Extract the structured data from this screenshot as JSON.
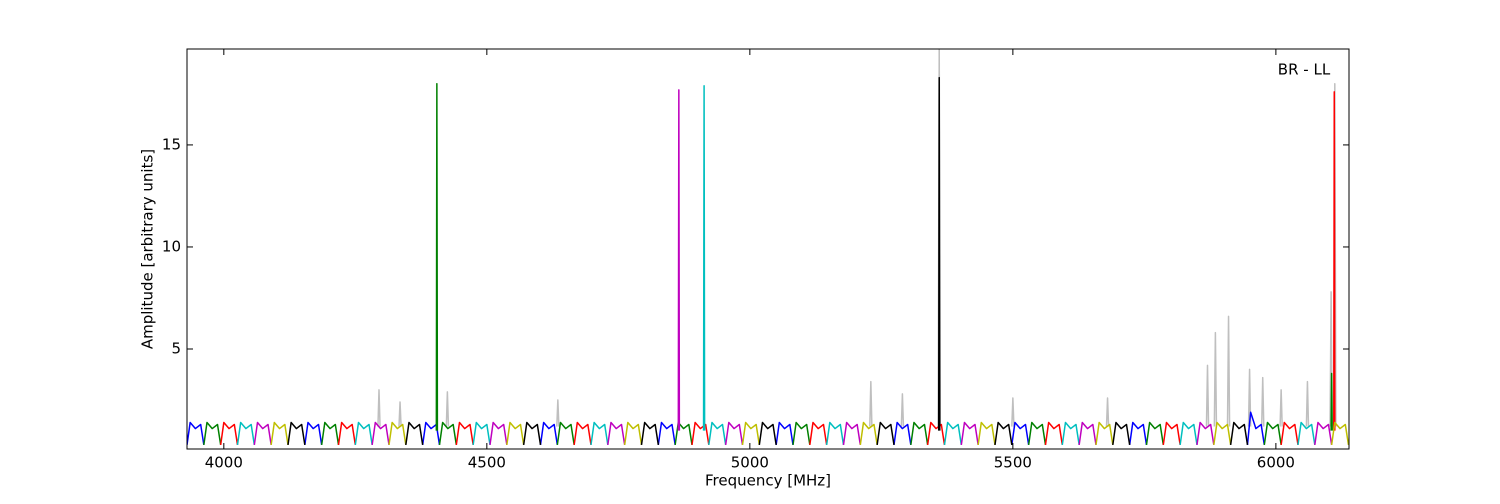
{
  "chart_data": {
    "type": "line",
    "annotation": "BR - LL",
    "xlabel": "Frequency [MHz]",
    "ylabel": "Amplitude [arbitrary units]",
    "xlim": [
      3930,
      6139
    ],
    "ylim": [
      0.1,
      19.7
    ],
    "xticks": [
      4000,
      4500,
      5000,
      5500,
      6000
    ],
    "yticks": [
      5,
      10,
      15
    ],
    "series": [
      {
        "color": "#bfbfbf",
        "x": [
          4293,
          4295,
          4297,
          null,
          4333,
          4335,
          4337,
          null,
          4423,
          4425,
          4427,
          null,
          4633,
          4635,
          4637,
          null,
          5228,
          5230,
          5232,
          null,
          5288,
          5290,
          5292,
          null,
          5358,
          5360,
          5362,
          null,
          5498,
          5500,
          5502,
          null,
          5678,
          5680,
          5682,
          null,
          5868,
          5870,
          5872,
          null,
          5883,
          5885,
          5887,
          null,
          5908,
          5910,
          5912,
          null,
          5948,
          5950,
          5952,
          null,
          5973,
          5975,
          5977,
          null,
          6008,
          6010,
          6012,
          null,
          6058,
          6060,
          6062,
          null,
          6103,
          6105,
          6107,
          null,
          6110,
          6112,
          6114
        ],
        "values": [
          1.2,
          3.0,
          1.2,
          null,
          1.2,
          2.4,
          1.2,
          null,
          1.2,
          2.9,
          1.2,
          null,
          1.2,
          2.5,
          1.2,
          null,
          1.2,
          3.4,
          1.2,
          null,
          1.2,
          2.8,
          1.2,
          null,
          1.2,
          19.7,
          1.2,
          null,
          1.2,
          2.6,
          1.2,
          null,
          1.2,
          2.6,
          1.2,
          null,
          1.2,
          4.2,
          1.2,
          null,
          1.2,
          5.8,
          1.2,
          null,
          1.2,
          6.6,
          1.2,
          null,
          1.2,
          4.0,
          1.2,
          null,
          1.2,
          3.6,
          1.2,
          null,
          1.2,
          3.0,
          1.2,
          null,
          1.2,
          3.4,
          1.2,
          null,
          1.2,
          7.8,
          1.2,
          null,
          1.2,
          18.0,
          1.2
        ]
      },
      {
        "color": "#0000ff",
        "x": [
          3930,
          3936,
          3946,
          3956,
          3962,
          null,
          4154,
          4160,
          4170,
          4180,
          4186,
          null,
          4378,
          4384,
          4394,
          4404,
          4410,
          null,
          4602,
          4608,
          4618,
          4628,
          4634,
          null,
          4826,
          4832,
          4842,
          4852,
          4858,
          null,
          5050,
          5056,
          5066,
          5076,
          5082,
          null,
          5274,
          5280,
          5290,
          5300,
          5306,
          null,
          5498,
          5504,
          5514,
          5524,
          5530,
          null,
          5722,
          5728,
          5738,
          5748,
          5754,
          null,
          5946,
          5952,
          5962,
          5972,
          5978
        ],
        "values": [
          0.3,
          1.4,
          1.1,
          1.3,
          0.3,
          null,
          0.3,
          1.4,
          1.1,
          1.3,
          0.3,
          null,
          0.3,
          1.4,
          1.1,
          1.3,
          0.3,
          null,
          0.3,
          1.4,
          1.1,
          1.3,
          0.3,
          null,
          0.3,
          1.4,
          1.1,
          1.3,
          0.3,
          null,
          0.3,
          1.4,
          1.1,
          1.3,
          0.3,
          null,
          0.3,
          1.4,
          1.1,
          1.3,
          0.3,
          null,
          0.3,
          1.4,
          1.1,
          1.3,
          0.3,
          null,
          0.3,
          1.4,
          1.1,
          1.3,
          0.3,
          null,
          0.3,
          1.9,
          1.1,
          1.3,
          0.3
        ]
      },
      {
        "color": "#008000",
        "x": [
          3962,
          3968,
          3978,
          3988,
          3994,
          null,
          4186,
          4192,
          4202,
          4212,
          4218,
          null,
          4410,
          4416,
          4426,
          4436,
          4442,
          null,
          4634,
          4640,
          4650,
          4660,
          4666,
          null,
          4858,
          4864,
          4874,
          4884,
          4890,
          null,
          5082,
          5088,
          5098,
          5108,
          5114,
          null,
          5306,
          5312,
          5322,
          5332,
          5338,
          null,
          5530,
          5536,
          5546,
          5556,
          5562,
          null,
          5754,
          5760,
          5770,
          5780,
          5786,
          null,
          5978,
          5984,
          5994,
          6004,
          6010,
          null,
          4404,
          4405,
          4406,
          null,
          6105,
          6106,
          6107
        ],
        "values": [
          0.3,
          1.4,
          1.1,
          1.3,
          0.3,
          null,
          0.3,
          1.4,
          1.1,
          1.3,
          0.3,
          null,
          0.3,
          1.4,
          1.1,
          1.3,
          0.3,
          null,
          0.3,
          1.4,
          1.1,
          1.3,
          0.3,
          null,
          0.3,
          1.4,
          1.1,
          1.3,
          0.3,
          null,
          0.3,
          1.4,
          1.1,
          1.3,
          0.3,
          null,
          0.3,
          1.4,
          1.1,
          1.3,
          0.3,
          null,
          0.3,
          1.4,
          1.1,
          1.3,
          0.3,
          null,
          0.3,
          1.4,
          1.1,
          1.3,
          0.3,
          null,
          0.3,
          1.4,
          1.1,
          1.3,
          0.3,
          null,
          1.0,
          18.0,
          1.0,
          null,
          1.0,
          3.8,
          1.0
        ]
      },
      {
        "color": "#ff0000",
        "x": [
          3994,
          4000,
          4010,
          4020,
          4026,
          null,
          4218,
          4224,
          4234,
          4244,
          4250,
          null,
          4442,
          4448,
          4458,
          4468,
          4474,
          null,
          4666,
          4672,
          4682,
          4692,
          4698,
          null,
          4890,
          4896,
          4906,
          4916,
          4922,
          null,
          5114,
          5120,
          5130,
          5140,
          5146,
          null,
          5338,
          5344,
          5354,
          5364,
          5370,
          null,
          5562,
          5568,
          5578,
          5588,
          5594,
          null,
          5786,
          5792,
          5802,
          5812,
          5818,
          null,
          6010,
          6016,
          6026,
          6036,
          6042,
          null,
          6110,
          6111,
          6112
        ],
        "values": [
          0.3,
          1.4,
          1.1,
          1.3,
          0.3,
          null,
          0.3,
          1.4,
          1.1,
          1.3,
          0.3,
          null,
          0.3,
          1.4,
          1.1,
          1.3,
          0.3,
          null,
          0.3,
          1.4,
          1.1,
          1.3,
          0.3,
          null,
          0.3,
          1.4,
          1.1,
          1.3,
          0.3,
          null,
          0.3,
          1.4,
          1.1,
          1.3,
          0.3,
          null,
          0.3,
          1.4,
          1.1,
          1.3,
          0.3,
          null,
          0.3,
          1.4,
          1.1,
          1.3,
          0.3,
          null,
          0.3,
          1.4,
          1.1,
          1.3,
          0.3,
          null,
          0.3,
          1.4,
          1.1,
          1.3,
          0.3,
          null,
          1.0,
          17.6,
          1.0
        ]
      },
      {
        "color": "#00bfbf",
        "x": [
          4026,
          4032,
          4042,
          4052,
          4058,
          null,
          4250,
          4256,
          4266,
          4276,
          4282,
          null,
          4474,
          4480,
          4490,
          4500,
          4506,
          null,
          4698,
          4704,
          4714,
          4724,
          4730,
          null,
          4922,
          4928,
          4938,
          4948,
          4954,
          null,
          5146,
          5152,
          5162,
          5172,
          5178,
          null,
          5370,
          5376,
          5386,
          5396,
          5402,
          null,
          5594,
          5600,
          5610,
          5620,
          5626,
          null,
          5818,
          5824,
          5834,
          5844,
          5850,
          null,
          6042,
          6048,
          6058,
          6068,
          6074,
          null,
          4912,
          4913,
          4914
        ],
        "values": [
          0.3,
          1.4,
          1.1,
          1.3,
          0.3,
          null,
          0.3,
          1.4,
          1.1,
          1.3,
          0.3,
          null,
          0.3,
          1.4,
          1.1,
          1.3,
          0.3,
          null,
          0.3,
          1.4,
          1.1,
          1.3,
          0.3,
          null,
          0.3,
          1.4,
          1.1,
          1.3,
          0.3,
          null,
          0.3,
          1.4,
          1.1,
          1.3,
          0.3,
          null,
          0.3,
          1.4,
          1.1,
          1.3,
          0.3,
          null,
          0.3,
          1.4,
          1.1,
          1.3,
          0.3,
          null,
          0.3,
          1.4,
          1.1,
          1.3,
          0.3,
          null,
          0.3,
          1.4,
          1.1,
          1.3,
          0.3,
          null,
          1.0,
          17.9,
          1.0
        ]
      },
      {
        "color": "#bf00bf",
        "x": [
          4058,
          4064,
          4074,
          4084,
          4090,
          null,
          4282,
          4288,
          4298,
          4308,
          4314,
          null,
          4506,
          4512,
          4522,
          4532,
          4538,
          null,
          4730,
          4736,
          4746,
          4756,
          4762,
          null,
          4954,
          4960,
          4970,
          4980,
          4986,
          null,
          5178,
          5184,
          5194,
          5204,
          5210,
          null,
          5402,
          5408,
          5418,
          5428,
          5434,
          null,
          5626,
          5632,
          5642,
          5652,
          5658,
          null,
          5850,
          5856,
          5866,
          5876,
          5882,
          null,
          6074,
          6080,
          6090,
          6100,
          6106,
          null,
          4864,
          4865,
          4866
        ],
        "values": [
          0.3,
          1.4,
          1.1,
          1.3,
          0.3,
          null,
          0.3,
          1.4,
          1.1,
          1.3,
          0.3,
          null,
          0.3,
          1.4,
          1.1,
          1.3,
          0.3,
          null,
          0.3,
          1.4,
          1.1,
          1.3,
          0.3,
          null,
          0.3,
          1.4,
          1.1,
          1.3,
          0.3,
          null,
          0.3,
          1.4,
          1.1,
          1.3,
          0.3,
          null,
          0.3,
          1.4,
          1.1,
          1.3,
          0.3,
          null,
          0.3,
          1.4,
          1.1,
          1.3,
          0.3,
          null,
          0.3,
          1.4,
          1.1,
          1.3,
          0.3,
          null,
          0.3,
          1.4,
          1.1,
          1.3,
          0.3,
          null,
          1.0,
          17.7,
          1.0
        ]
      },
      {
        "color": "#bfbf00",
        "x": [
          4090,
          4096,
          4106,
          4116,
          4122,
          null,
          4314,
          4320,
          4330,
          4340,
          4346,
          null,
          4538,
          4544,
          4554,
          4564,
          4570,
          null,
          4762,
          4768,
          4778,
          4788,
          4794,
          null,
          4986,
          4992,
          5002,
          5012,
          5018,
          null,
          5210,
          5216,
          5226,
          5236,
          5242,
          null,
          5434,
          5440,
          5450,
          5460,
          5466,
          null,
          5658,
          5664,
          5674,
          5684,
          5690,
          null,
          5882,
          5888,
          5898,
          5908,
          5914,
          null,
          6106,
          6112,
          6122,
          6132,
          6138
        ],
        "values": [
          0.3,
          1.4,
          1.1,
          1.3,
          0.3,
          null,
          0.3,
          1.4,
          1.1,
          1.3,
          0.3,
          null,
          0.3,
          1.4,
          1.1,
          1.3,
          0.3,
          null,
          0.3,
          1.4,
          1.1,
          1.3,
          0.3,
          null,
          0.3,
          1.4,
          1.1,
          1.3,
          0.3,
          null,
          0.3,
          1.4,
          1.1,
          1.3,
          0.3,
          null,
          0.3,
          1.4,
          1.1,
          1.3,
          0.3,
          null,
          0.3,
          1.4,
          1.1,
          1.3,
          0.3,
          null,
          0.3,
          1.4,
          1.1,
          1.3,
          0.3,
          null,
          0.3,
          1.4,
          1.1,
          1.3,
          0.3
        ]
      },
      {
        "color": "#000000",
        "x": [
          4122,
          4128,
          4138,
          4148,
          4154,
          null,
          4346,
          4352,
          4362,
          4372,
          4378,
          null,
          4570,
          4576,
          4586,
          4596,
          4602,
          null,
          4794,
          4800,
          4810,
          4820,
          4826,
          null,
          5018,
          5024,
          5034,
          5044,
          5050,
          null,
          5242,
          5248,
          5258,
          5268,
          5274,
          null,
          5466,
          5472,
          5482,
          5492,
          5498,
          null,
          5690,
          5696,
          5706,
          5716,
          5722,
          null,
          5914,
          5920,
          5930,
          5940,
          5946,
          null,
          5359,
          5360,
          5361
        ],
        "values": [
          0.3,
          1.4,
          1.1,
          1.3,
          0.3,
          null,
          0.3,
          1.4,
          1.1,
          1.3,
          0.3,
          null,
          0.3,
          1.4,
          1.1,
          1.3,
          0.3,
          null,
          0.3,
          1.4,
          1.1,
          1.3,
          0.3,
          null,
          0.3,
          1.4,
          1.1,
          1.3,
          0.3,
          null,
          0.3,
          1.4,
          1.1,
          1.3,
          0.3,
          null,
          0.3,
          1.4,
          1.1,
          1.3,
          0.3,
          null,
          0.3,
          1.4,
          1.1,
          1.3,
          0.3,
          null,
          0.3,
          1.4,
          1.1,
          1.3,
          0.3,
          null,
          1.0,
          18.3,
          1.0
        ]
      }
    ]
  }
}
